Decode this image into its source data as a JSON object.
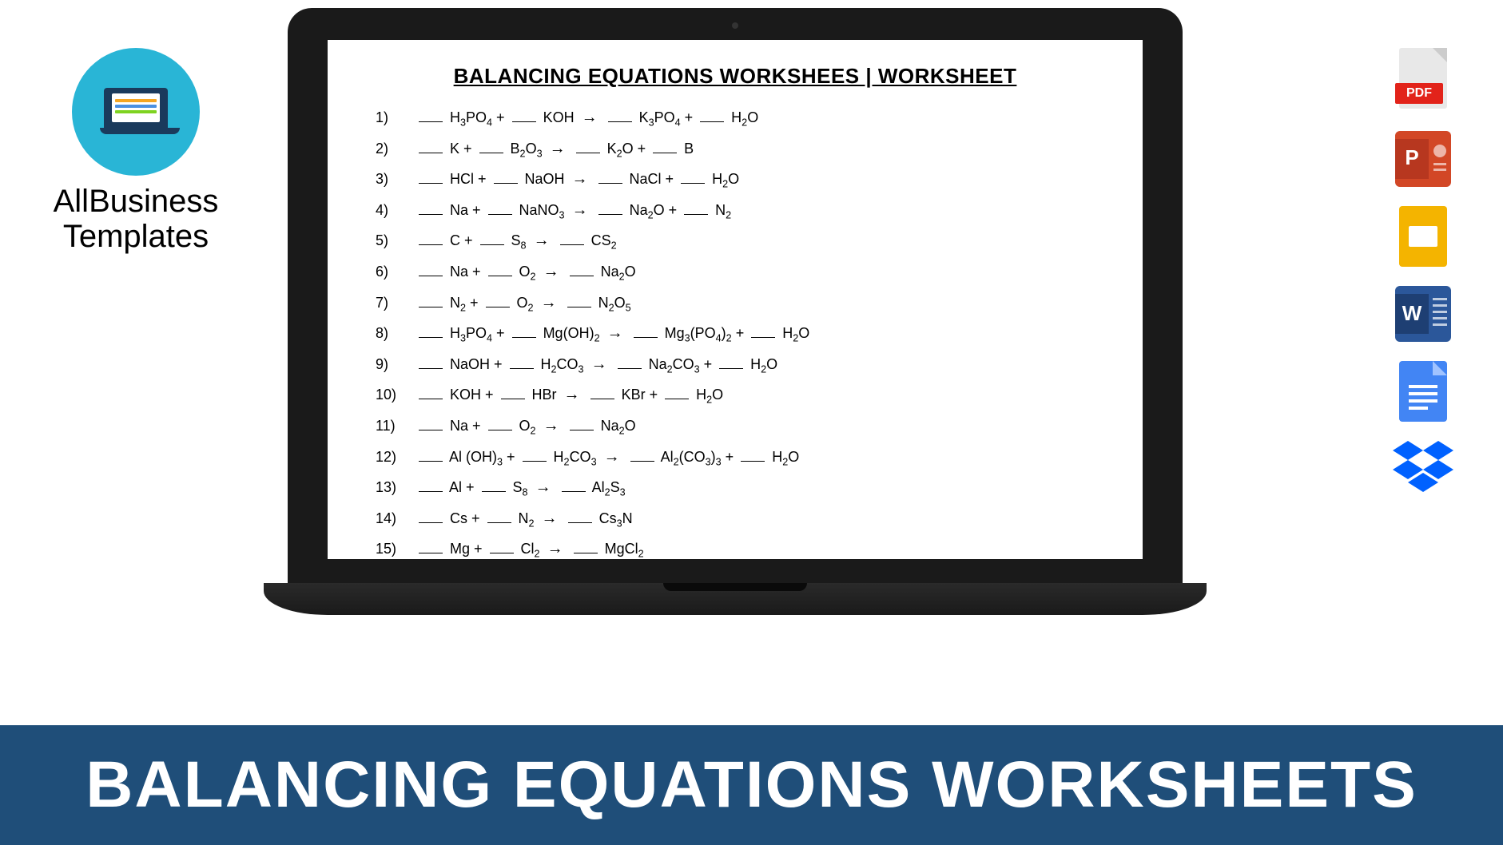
{
  "logo": {
    "line1": "AllBusiness",
    "line2": "Templates",
    "laptop_lines": [
      "#f5a623",
      "#4a90e2",
      "#7ed321"
    ]
  },
  "document": {
    "title": "BALANCING EQUATIONS WORKSHEES | WORKSHEET",
    "equations": [
      {
        "n": "1)",
        "parts": [
          "___ H₃PO₄  +  ___ KOH  →  ___ K₃PO₄  +  ___ H₂O"
        ]
      },
      {
        "n": "2)",
        "parts": [
          "___ K  +  ___ B₂O₃  →  ___ K₂O  +  ___ B"
        ]
      },
      {
        "n": "3)",
        "parts": [
          "___ HCl  +  ___ NaOH  →  ___ NaCl  +  ___ H₂O"
        ]
      },
      {
        "n": "4)",
        "parts": [
          "___ Na  +  ___ NaNO₃  →  ___ Na₂O  +  ___ N₂"
        ]
      },
      {
        "n": "5)",
        "parts": [
          "___ C  +  ___ S₈  →  ___ CS₂"
        ]
      },
      {
        "n": "6)",
        "parts": [
          "___ Na  +  ___ O₂  →  ___ Na₂O"
        ]
      },
      {
        "n": "7)",
        "parts": [
          "___ N₂  +  ___ O₂  →  ___ N₂O₅"
        ]
      },
      {
        "n": "8)",
        "parts": [
          "___ H₃PO₄  +  ___ Mg(OH)₂  →  ___ Mg₃(PO₄)₂  +  ___ H₂O"
        ]
      },
      {
        "n": "9)",
        "parts": [
          "___ NaOH  +  ___ H₂CO₃  →  ___ Na₂CO₃  +  ___ H₂O"
        ]
      },
      {
        "n": "10)",
        "parts": [
          "___ KOH  +  ___ HBr  →  ___ KBr  +  ___ H₂O"
        ]
      },
      {
        "n": "11)",
        "parts": [
          "___ Na  +  ___ O₂  →  ___ Na₂O"
        ]
      },
      {
        "n": "12)",
        "parts": [
          "___ Al (OH)₃  +  ___ H₂CO₃  →  ___ Al₂(CO₃)₃  +  ___ H₂O"
        ]
      },
      {
        "n": "13)",
        "parts": [
          "___ Al  +  ___ S₈  →  ___ Al₂S₃"
        ]
      },
      {
        "n": "14)",
        "parts": [
          "___ Cs  +  ___ N₂  →  ___ Cs₃N"
        ]
      },
      {
        "n": "15)",
        "parts": [
          "___ Mg  +  ___ Cl₂  →  ___ MgCl₂"
        ]
      }
    ]
  },
  "icons": {
    "pdf": {
      "label": "PDF",
      "color": "#e2231a"
    },
    "ppt": {
      "label": "P",
      "color": "#d24726"
    },
    "slides": {
      "color": "#f4b400"
    },
    "word": {
      "label": "W",
      "color": "#2b579a"
    },
    "docs": {
      "color": "#4285f4"
    },
    "dropbox": {
      "color": "#0061ff"
    }
  },
  "banner": {
    "text": "BALANCING EQUATIONS WORKSHEETS",
    "background": "#1f4e79",
    "text_color": "#ffffff"
  },
  "styling": {
    "page_bg": "#ffffff",
    "doc_title_fontsize": 26,
    "eq_fontsize": 18,
    "banner_fontsize": 82
  }
}
